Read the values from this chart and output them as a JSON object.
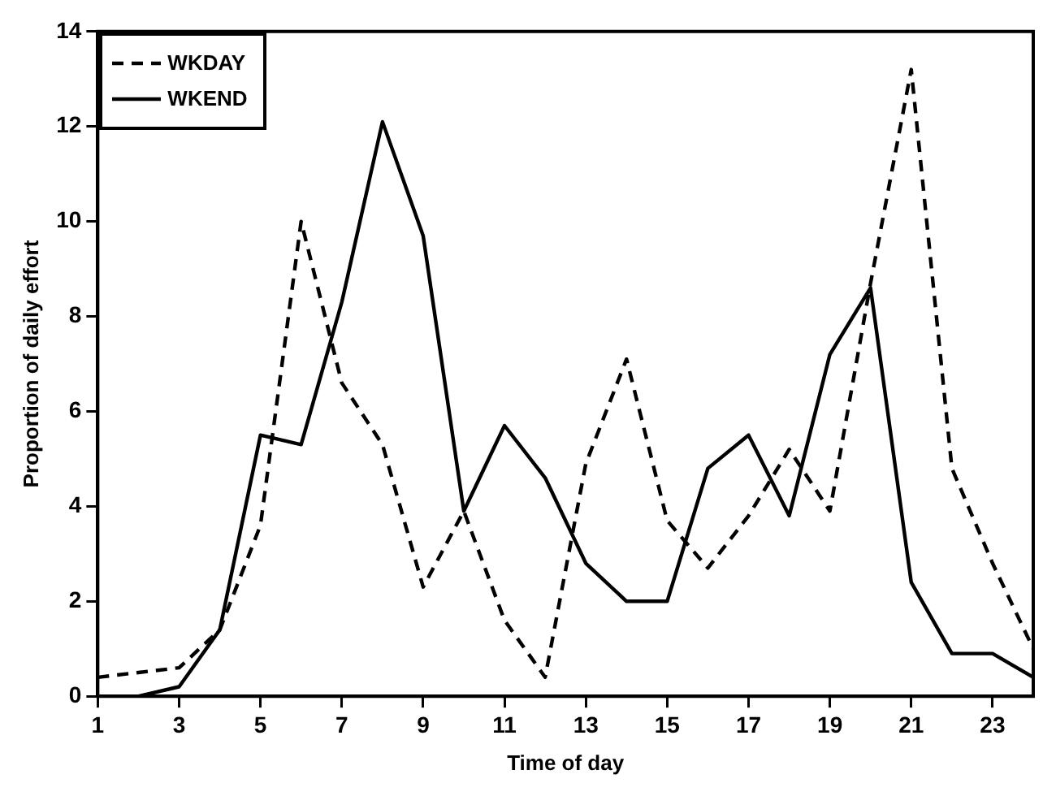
{
  "chart_data": {
    "type": "line",
    "xlabel": "Time of day",
    "ylabel": "Proportion of daily effort",
    "x": [
      1,
      2,
      3,
      4,
      5,
      6,
      7,
      8,
      9,
      10,
      11,
      12,
      13,
      14,
      15,
      16,
      17,
      18,
      19,
      20,
      21,
      22,
      23,
      24
    ],
    "series": [
      {
        "name": "WKDAY",
        "color": "#000000",
        "line_style": "dashed",
        "values": [
          0.4,
          0.5,
          0.6,
          1.4,
          3.6,
          10,
          6.6,
          5.3,
          2.3,
          3.9,
          1.6,
          0.4,
          4.9,
          7.1,
          3.7,
          2.7,
          3.8,
          5.2,
          3.9,
          8.7,
          13.2,
          4.8,
          2.8,
          1.0
        ]
      },
      {
        "name": "WKEND",
        "color": "#000000",
        "line_style": "solid",
        "values": [
          0,
          0,
          0.2,
          1.4,
          5.5,
          5.3,
          8.3,
          12.1,
          9.7,
          3.9,
          5.7,
          4.6,
          2.8,
          2.0,
          2.0,
          4.8,
          5.5,
          3.8,
          7.2,
          8.6,
          2.4,
          0.9,
          0.9,
          0.4
        ]
      }
    ],
    "xlim": [
      1,
      24
    ],
    "xticks": [
      1,
      3,
      5,
      7,
      9,
      11,
      13,
      15,
      17,
      19,
      21,
      23
    ],
    "ylim": [
      0,
      14
    ],
    "yticks": [
      0,
      2,
      4,
      6,
      8,
      10,
      12,
      14
    ],
    "grid": false,
    "legend": "top left",
    "marker": "none"
  }
}
